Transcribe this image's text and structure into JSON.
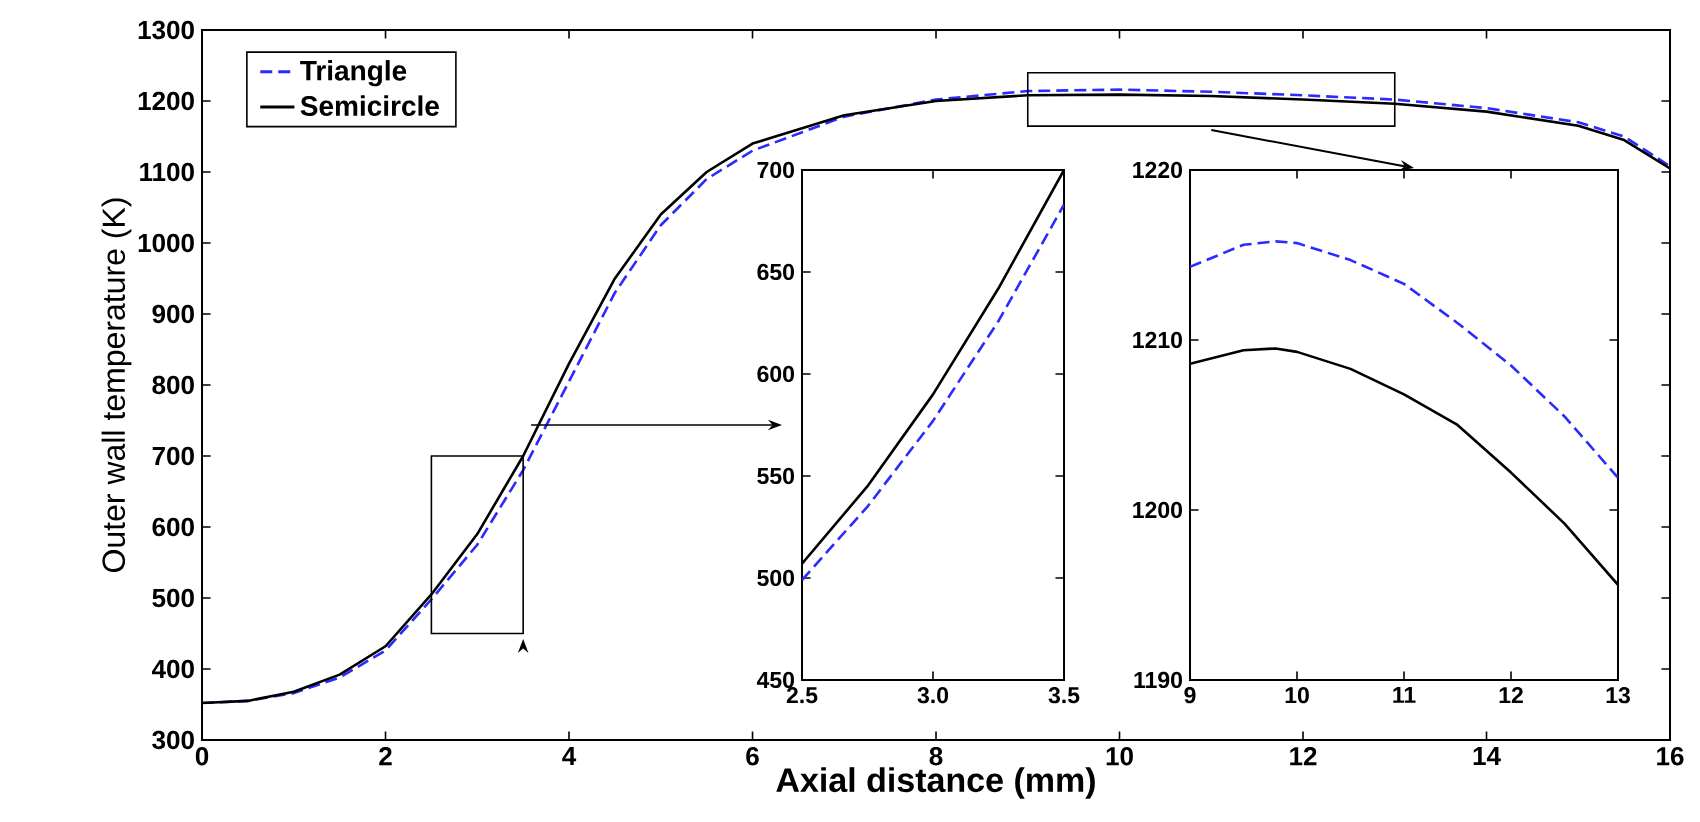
{
  "chart_data": [
    {
      "type": "line",
      "xlabel": "Axial distance (mm)",
      "ylabel": "Outer wall temperature (K)",
      "legend": "top left",
      "x": [
        0,
        0.5,
        1,
        1.5,
        2,
        2.5,
        3,
        3.5,
        4,
        4.5,
        5,
        5.5,
        6,
        7,
        8,
        9,
        10,
        11,
        12,
        13,
        14,
        15,
        15.5,
        16
      ],
      "series": [
        {
          "name": "Triangle",
          "color": "#2b2bff",
          "line_style": "dashed",
          "values": [
            352,
            355,
            366,
            388,
            426,
            498,
            575,
            680,
            805,
            930,
            1025,
            1090,
            1130,
            1178,
            1202,
            1214,
            1216,
            1213,
            1208,
            1202,
            1190,
            1170,
            1150,
            1108
          ]
        },
        {
          "name": "Semicircle",
          "color": "#000000",
          "line_style": "solid",
          "values": [
            352,
            355,
            368,
            392,
            432,
            505,
            590,
            700,
            830,
            950,
            1040,
            1100,
            1140,
            1180,
            1200,
            1208,
            1209,
            1207,
            1202,
            1196,
            1185,
            1165,
            1145,
            1105
          ]
        }
      ],
      "xlim": [
        0,
        16
      ],
      "ylim": [
        300,
        1300
      ],
      "xticks": [
        0,
        2,
        4,
        6,
        8,
        10,
        12,
        14,
        16
      ],
      "yticks": [
        300,
        400,
        500,
        600,
        700,
        800,
        900,
        1000,
        1100,
        1200,
        1300
      ]
    },
    {
      "type": "line",
      "x": [
        2.5,
        2.75,
        3.0,
        3.25,
        3.5
      ],
      "series": [
        {
          "color": "#2b2bff",
          "line_style": "dashed",
          "values": [
            499,
            535,
            577,
            626,
            683
          ]
        },
        {
          "color": "#000000",
          "line_style": "solid",
          "values": [
            507,
            545,
            590,
            642,
            700
          ]
        }
      ],
      "xlim": [
        2.5,
        3.5
      ],
      "ylim": [
        450,
        700
      ],
      "xticks": [
        2.5,
        {
          "value": 3,
          "label": "3.0"
        },
        3.5
      ],
      "yticks": [
        450,
        500,
        550,
        600,
        650,
        700
      ]
    },
    {
      "type": "line",
      "x": [
        9,
        9.5,
        9.8,
        10,
        10.5,
        11,
        11.5,
        12,
        12.5,
        13
      ],
      "series": [
        {
          "color": "#2b2bff",
          "line_style": "dashed",
          "values": [
            1214.3,
            1215.6,
            1215.8,
            1215.7,
            1214.7,
            1213.3,
            1211,
            1208.5,
            1205.5,
            1201.9
          ]
        },
        {
          "color": "#000000",
          "line_style": "solid",
          "values": [
            1208.6,
            1209.4,
            1209.5,
            1209.3,
            1208.3,
            1206.8,
            1205,
            1202.2,
            1199.2,
            1195.6
          ]
        }
      ],
      "xlim": [
        9,
        13
      ],
      "ylim": [
        1190,
        1220
      ],
      "xticks": [
        9,
        10,
        11,
        12,
        13
      ],
      "yticks": [
        1190,
        1200,
        1210,
        1220
      ]
    }
  ]
}
